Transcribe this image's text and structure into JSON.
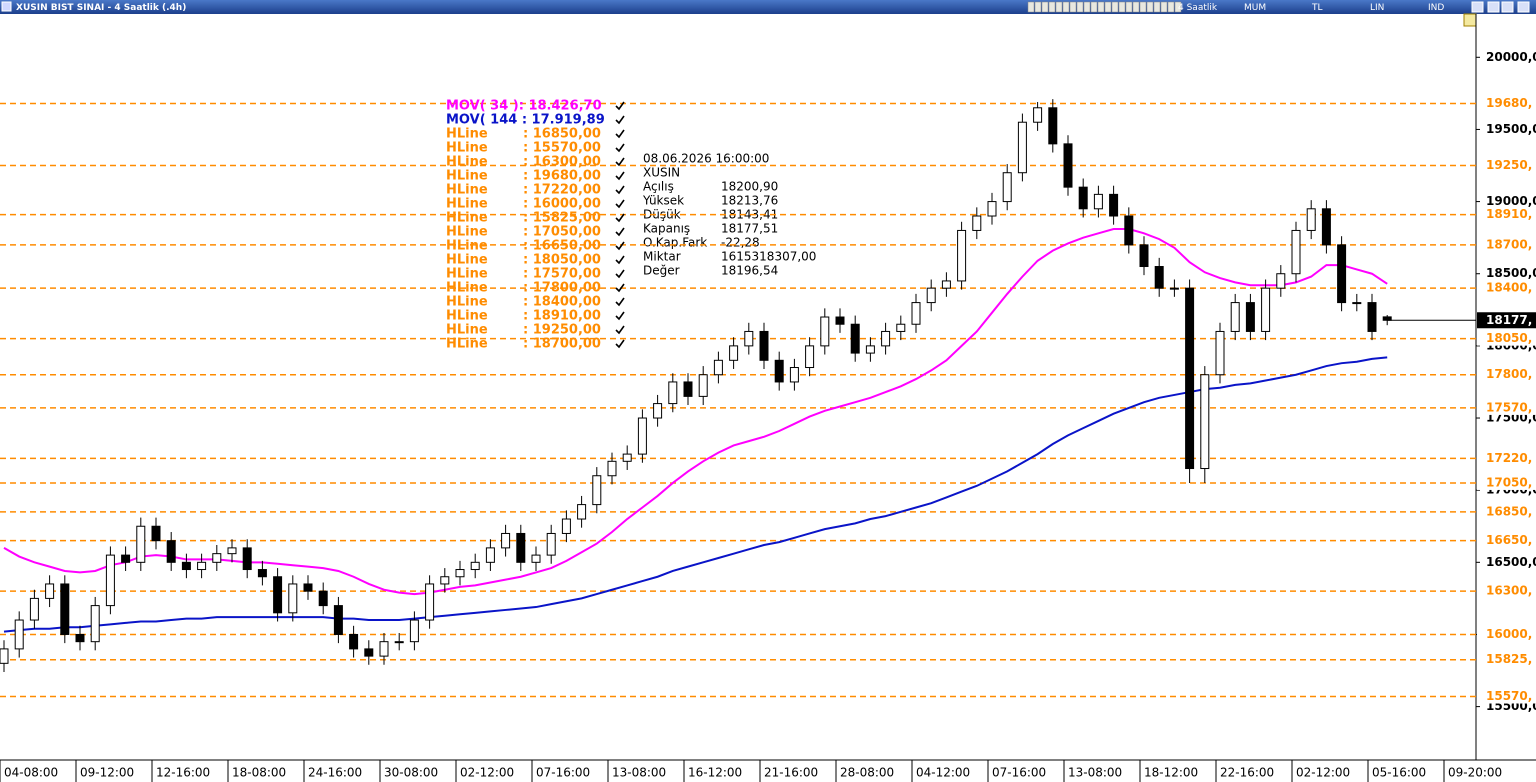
{
  "window": {
    "title": "XUSIN BIST SINAI - 4 Saatlik (.4h)",
    "toolbar": [
      "4 Saatlik",
      "MUM",
      "TL",
      "LIN",
      "IND"
    ]
  },
  "chart_data": {
    "type": "candlestick",
    "categories": [
      "04-08:00",
      null,
      null,
      null,
      null,
      "09-12:00",
      null,
      null,
      null,
      null,
      "12-16:00",
      null,
      null,
      null,
      null,
      "18-08:00",
      null,
      null,
      null,
      null,
      "24-16:00",
      null,
      null,
      null,
      null,
      "30-08:00",
      null,
      null,
      null,
      null,
      "02-12:00",
      null,
      null,
      null,
      null,
      "07-16:00",
      null,
      null,
      null,
      null,
      "13-08:00",
      null,
      null,
      null,
      null,
      "16-12:00",
      null,
      null,
      null,
      null,
      "21-16:00",
      null,
      null,
      null,
      null,
      "28-08:00",
      null,
      null,
      null,
      null,
      "04-12:00",
      null,
      null,
      null,
      null,
      "07-16:00",
      null,
      null,
      null,
      null,
      "13-08:00",
      null,
      null,
      null,
      null,
      "18-12:00",
      null,
      null,
      null,
      null,
      "22-16:00",
      null,
      null,
      null,
      null,
      "02-12:00",
      null,
      null,
      null,
      null,
      "05-16:00",
      null,
      null,
      null,
      null,
      "09-20:00"
    ],
    "open": [
      15800,
      15900,
      16100,
      16250,
      16350,
      16000,
      15950,
      16200,
      16550,
      16500,
      16750,
      16650,
      16500,
      16450,
      16500,
      16560,
      16600,
      16450,
      16400,
      16150,
      16350,
      16300,
      16200,
      16000,
      15900,
      15850,
      15950,
      15950,
      16100,
      16350,
      16400,
      16450,
      16500,
      16600,
      16700,
      16500,
      16550,
      16700,
      16800,
      16900,
      17100,
      17200,
      17250,
      17500,
      17600,
      17750,
      17650,
      17800,
      17900,
      18000,
      18100,
      17900,
      17750,
      17850,
      18000,
      18200,
      18150,
      17950,
      18000,
      18100,
      18150,
      18300,
      18400,
      18450,
      18800,
      18900,
      19000,
      19200,
      19550,
      19650,
      19400,
      19100,
      18950,
      19050,
      18900,
      18700,
      18550,
      18400,
      18400,
      17150,
      17800,
      18100,
      18300,
      18100,
      18400,
      18500,
      18800,
      18950,
      18700,
      18300,
      18300,
      18200.9,
      null,
      null,
      null,
      null
    ],
    "high": [
      15960,
      16160,
      16310,
      16410,
      16410,
      16060,
      16260,
      16610,
      16610,
      16810,
      16810,
      16710,
      16560,
      16560,
      16620,
      16660,
      16660,
      16510,
      16460,
      16410,
      16410,
      16360,
      16260,
      16060,
      15960,
      16010,
      16010,
      16160,
      16410,
      16460,
      16510,
      16560,
      16660,
      16760,
      16760,
      16610,
      16760,
      16860,
      16960,
      17160,
      17260,
      17310,
      17560,
      17660,
      17810,
      17810,
      17860,
      17960,
      18060,
      18160,
      18160,
      17960,
      17910,
      18060,
      18260,
      18260,
      18210,
      18060,
      18160,
      18210,
      18360,
      18460,
      18510,
      18860,
      18960,
      19060,
      19260,
      19610,
      19690,
      19710,
      19460,
      19160,
      19110,
      19110,
      18960,
      18760,
      18610,
      18460,
      18460,
      17860,
      18160,
      18360,
      18360,
      18460,
      18560,
      18860,
      19010,
      19010,
      18760,
      18360,
      18360,
      18213.76,
      null,
      null,
      null,
      null
    ],
    "low": [
      15740,
      15840,
      16040,
      16190,
      15940,
      15890,
      15890,
      16140,
      16440,
      16440,
      16590,
      16440,
      16390,
      16390,
      16440,
      16500,
      16390,
      16340,
      16090,
      16090,
      16240,
      16140,
      15940,
      15840,
      15790,
      15790,
      15890,
      15890,
      16040,
      16290,
      16340,
      16390,
      16440,
      16540,
      16440,
      16440,
      16490,
      16640,
      16740,
      16840,
      17040,
      17140,
      17190,
      17440,
      17540,
      17590,
      17590,
      17740,
      17840,
      17940,
      17840,
      17690,
      17690,
      17790,
      17940,
      18090,
      17890,
      17890,
      17940,
      18040,
      18090,
      18240,
      18340,
      18390,
      18740,
      18840,
      18940,
      19140,
      19490,
      19340,
      19040,
      18890,
      18890,
      18840,
      18640,
      18490,
      18340,
      18340,
      17050,
      17050,
      17740,
      18040,
      18040,
      18040,
      18340,
      18440,
      18740,
      18640,
      18240,
      18240,
      18040,
      18143.41,
      null,
      null,
      null,
      null
    ],
    "close": [
      15900,
      16100,
      16250,
      16350,
      16000,
      15950,
      16200,
      16550,
      16500,
      16750,
      16650,
      16500,
      16450,
      16500,
      16560,
      16600,
      16450,
      16400,
      16150,
      16350,
      16300,
      16200,
      16000,
      15900,
      15850,
      15950,
      15950,
      16100,
      16350,
      16400,
      16450,
      16500,
      16600,
      16700,
      16500,
      16550,
      16700,
      16800,
      16900,
      17100,
      17200,
      17250,
      17500,
      17600,
      17750,
      17650,
      17800,
      17900,
      18000,
      18100,
      17900,
      17750,
      17850,
      18000,
      18200,
      18150,
      17950,
      18000,
      18100,
      18150,
      18300,
      18400,
      18450,
      18800,
      18900,
      19000,
      19200,
      19550,
      19650,
      19400,
      19100,
      18950,
      19050,
      18900,
      18700,
      18550,
      18400,
      18400,
      17150,
      17800,
      18100,
      18300,
      18100,
      18400,
      18500,
      18800,
      18950,
      18700,
      18300,
      18300,
      18100,
      18177.51,
      null,
      null,
      null,
      null
    ],
    "series": [
      {
        "name": "MOV( 144 : 17.919,89",
        "color": "#0a14c8",
        "values": [
          16020,
          16030,
          16040,
          16040,
          16050,
          16050,
          16060,
          16070,
          16080,
          16090,
          16090,
          16100,
          16110,
          16110,
          16120,
          16120,
          16120,
          16120,
          16120,
          16120,
          16120,
          16120,
          16110,
          16110,
          16100,
          16100,
          16100,
          16110,
          16120,
          16130,
          16140,
          16150,
          16160,
          16170,
          16180,
          16190,
          16210,
          16230,
          16250,
          16280,
          16310,
          16340,
          16370,
          16400,
          16440,
          16470,
          16500,
          16530,
          16560,
          16590,
          16620,
          16640,
          16670,
          16700,
          16730,
          16750,
          16770,
          16800,
          16820,
          16850,
          16880,
          16910,
          16950,
          16990,
          17030,
          17080,
          17130,
          17190,
          17250,
          17320,
          17380,
          17430,
          17480,
          17530,
          17570,
          17610,
          17640,
          17660,
          17680,
          17700,
          17710,
          17730,
          17740,
          17760,
          17780,
          17800,
          17830,
          17860,
          17880,
          17890,
          17910,
          17920,
          null,
          null,
          null,
          null
        ]
      },
      {
        "name": "MOV( 34 ): 18.426,70",
        "color": "#ff00ff",
        "values": [
          16600,
          16540,
          16500,
          16470,
          16440,
          16430,
          16440,
          16480,
          16500,
          16540,
          16550,
          16540,
          16520,
          16520,
          16520,
          16510,
          16500,
          16500,
          16490,
          16480,
          16470,
          16460,
          16440,
          16400,
          16350,
          16310,
          16290,
          16280,
          16290,
          16310,
          16330,
          16340,
          16360,
          16380,
          16400,
          16430,
          16460,
          16510,
          16570,
          16630,
          16710,
          16800,
          16880,
          16960,
          17050,
          17130,
          17200,
          17260,
          17310,
          17340,
          17370,
          17410,
          17460,
          17510,
          17550,
          17580,
          17610,
          17640,
          17680,
          17720,
          17770,
          17830,
          17900,
          18000,
          18100,
          18230,
          18360,
          18480,
          18590,
          18660,
          18710,
          18750,
          18780,
          18810,
          18810,
          18780,
          18740,
          18680,
          18580,
          18510,
          18470,
          18440,
          18420,
          18420,
          18420,
          18440,
          18480,
          18560,
          18560,
          18530,
          18500,
          18430,
          null,
          null,
          null,
          null
        ]
      }
    ],
    "hlines": [
      {
        "name": "HLine",
        "value": 16850,
        "label": ": 16850,00",
        "axis_label": "16850,"
      },
      {
        "name": "HLine",
        "value": 15570,
        "label": ": 15570,00",
        "axis_label": "15570,"
      },
      {
        "name": "HLine",
        "value": 16300,
        "label": ": 16300,00",
        "axis_label": "16300,"
      },
      {
        "name": "HLine",
        "value": 19680,
        "label": ": 19680,00",
        "axis_label": "19680,"
      },
      {
        "name": "HLine",
        "value": 17220,
        "label": ": 17220,00",
        "axis_label": "17220,"
      },
      {
        "name": "HLine",
        "value": 16000,
        "label": ": 16000,00",
        "axis_label": "16000,"
      },
      {
        "name": "HLine",
        "value": 15825,
        "label": ": 15825,00",
        "axis_label": "15825,"
      },
      {
        "name": "HLine",
        "value": 17050,
        "label": ": 17050,00",
        "axis_label": "17050,"
      },
      {
        "name": "HLine",
        "value": 16650,
        "label": ": 16650,00",
        "axis_label": "16650,"
      },
      {
        "name": "HLine",
        "value": 18050,
        "label": ": 18050,00",
        "axis_label": "18050,"
      },
      {
        "name": "HLine",
        "value": 17570,
        "label": ": 17570,00",
        "axis_label": "17570,"
      },
      {
        "name": "HLine",
        "value": 17800,
        "label": ": 17800,00",
        "axis_label": "17800,"
      },
      {
        "name": "HLine",
        "value": 18400,
        "label": ": 18400,00",
        "axis_label": "18400,"
      },
      {
        "name": "HLine",
        "value": 18910,
        "label": ": 18910,00",
        "axis_label": "18910,"
      },
      {
        "name": "HLine",
        "value": 19250,
        "label": ": 19250,00",
        "axis_label": "19250,"
      },
      {
        "name": "HLine",
        "value": 18700,
        "label": ": 18700,00",
        "axis_label": "18700,"
      }
    ],
    "hline_color": "#ff8c00",
    "last_price_label": "18177,",
    "ylim": [
      15130,
      20300
    ],
    "yticks": [
      {
        "value": 20000,
        "label": "20000,0"
      },
      {
        "value": 19500,
        "label": "19500,0"
      },
      {
        "value": 19000,
        "label": "19000,0"
      },
      {
        "value": 18500,
        "label": "18500,0"
      },
      {
        "value": 18000,
        "label": "18000,0"
      },
      {
        "value": 17500,
        "label": "17500,0"
      },
      {
        "value": 17000,
        "label": "17000,0"
      },
      {
        "value": 16500,
        "label": "16500,0"
      },
      {
        "value": 16000,
        "label": "16000,0"
      },
      {
        "value": 15500,
        "label": "15500,0"
      }
    ],
    "info": {
      "date": "08.06.2026 16:00:00",
      "symbol": "XUSIN",
      "rows": [
        [
          "Açılış",
          "18200,90"
        ],
        [
          "Yüksek",
          "18213,76"
        ],
        [
          "Düşük",
          "18143,41"
        ],
        [
          "Kapanış",
          "18177,51"
        ],
        [
          "O.Kap.Fark",
          "-22,28"
        ],
        [
          "Miktar",
          "1615318307,00"
        ],
        [
          "Değer",
          "18196,54"
        ]
      ]
    }
  }
}
